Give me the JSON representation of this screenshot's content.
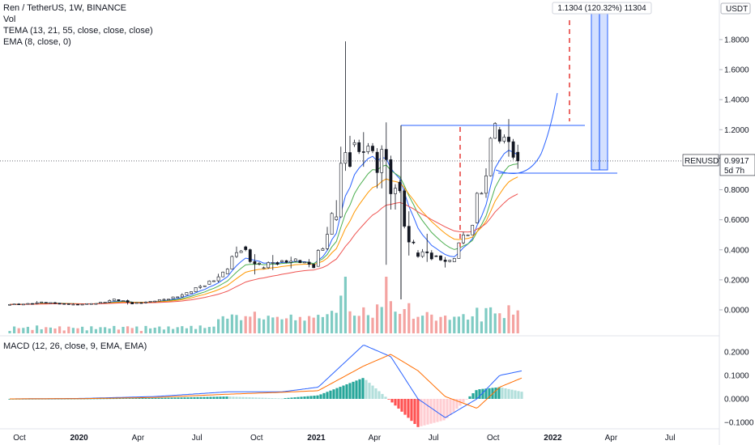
{
  "legend": {
    "title": "Ren / TetherUS, 1W, BINANCE",
    "vol": "Vol",
    "tema": "TEMA (13, 21, 55, close, close, close)",
    "ema": "EMA (8, close, 0)",
    "macd": "MACD (12, 26, close, 9, EMA, EMA)"
  },
  "axis": {
    "currency": "USDT",
    "price_ticks": [
      "1.8000",
      "1.6000",
      "1.4000",
      "1.2000",
      "0.8000",
      "0.6000",
      "0.4000",
      "0.2000",
      "0.0000"
    ],
    "macd_ticks": [
      "0.2000",
      "0.1000",
      "0.0000",
      "−0.1000"
    ],
    "time_ticks": [
      "Oct",
      "2020",
      "Apr",
      "Jul",
      "Oct",
      "2021",
      "Apr",
      "Jul",
      "Oct",
      "2022",
      "Apr",
      "Jul"
    ],
    "time_ticks_bold": [
      false,
      true,
      false,
      false,
      false,
      true,
      false,
      false,
      false,
      true,
      false,
      false
    ]
  },
  "price_label": {
    "symbol": "RENUSDT",
    "price": "0.9917",
    "countdown": "5d 7h"
  },
  "measure": {
    "label": "1.1304 (120.32%) 11304"
  },
  "colors": {
    "up": "#26a69a",
    "down": "#ef5350",
    "vol_up": "#7fcbc3",
    "vol_down": "#f4a3a1",
    "tema_fast": "#2962ff",
    "tema_mid": "#4caf50",
    "tema_slow": "#ff9800",
    "ema": "#ef5350",
    "macd": "#2962ff",
    "signal": "#ff6d00",
    "drawing": "#2962ff",
    "dash": "#e53935"
  },
  "chart_data": [
    {
      "type": "candlestick",
      "title": "Ren / TetherUS, 1W, BINANCE",
      "ylim": [
        -0.15,
        1.9
      ],
      "x_range": [
        "2019-09-01",
        "2022-09-15"
      ],
      "candles": [
        {
          "date": "2019-09-16",
          "open": 0.035,
          "high": 0.045,
          "low": 0.03,
          "close": 0.04
        },
        {
          "date": "2019-10-14",
          "open": 0.04,
          "high": 0.06,
          "low": 0.035,
          "close": 0.05
        },
        {
          "date": "2019-11-11",
          "open": 0.05,
          "high": 0.055,
          "low": 0.038,
          "close": 0.042
        },
        {
          "date": "2019-12-09",
          "open": 0.042,
          "high": 0.048,
          "low": 0.033,
          "close": 0.036
        },
        {
          "date": "2020-01-06",
          "open": 0.036,
          "high": 0.046,
          "low": 0.032,
          "close": 0.044
        },
        {
          "date": "2020-02-03",
          "open": 0.044,
          "high": 0.075,
          "low": 0.04,
          "close": 0.068
        },
        {
          "date": "2020-03-02",
          "open": 0.068,
          "high": 0.075,
          "low": 0.03,
          "close": 0.045
        },
        {
          "date": "2020-03-30",
          "open": 0.045,
          "high": 0.06,
          "low": 0.04,
          "close": 0.055
        },
        {
          "date": "2020-04-27",
          "open": 0.055,
          "high": 0.08,
          "low": 0.05,
          "close": 0.075
        },
        {
          "date": "2020-05-25",
          "open": 0.075,
          "high": 0.12,
          "low": 0.07,
          "close": 0.11
        },
        {
          "date": "2020-06-22",
          "open": 0.11,
          "high": 0.18,
          "low": 0.1,
          "close": 0.17
        },
        {
          "date": "2020-07-20",
          "open": 0.17,
          "high": 0.26,
          "low": 0.16,
          "close": 0.24
        },
        {
          "date": "2020-08-17",
          "open": 0.24,
          "high": 0.46,
          "low": 0.23,
          "close": 0.42
        },
        {
          "date": "2020-09-14",
          "open": 0.42,
          "high": 0.47,
          "low": 0.21,
          "close": 0.28
        },
        {
          "date": "2020-10-12",
          "open": 0.28,
          "high": 0.37,
          "low": 0.23,
          "close": 0.32
        },
        {
          "date": "2020-11-09",
          "open": 0.32,
          "high": 0.36,
          "low": 0.28,
          "close": 0.33
        },
        {
          "date": "2020-12-07",
          "open": 0.33,
          "high": 0.35,
          "low": 0.27,
          "close": 0.29
        },
        {
          "date": "2021-01-04",
          "open": 0.29,
          "high": 0.65,
          "low": 0.28,
          "close": 0.6
        },
        {
          "date": "2021-02-01",
          "open": 0.6,
          "high": 1.84,
          "low": 0.55,
          "close": 1.1
        },
        {
          "date": "2021-03-01",
          "open": 1.1,
          "high": 1.23,
          "low": 0.95,
          "close": 1.05
        },
        {
          "date": "2021-04-05",
          "open": 1.05,
          "high": 1.23,
          "low": 0.15,
          "close": 0.85
        },
        {
          "date": "2021-05-10",
          "open": 0.85,
          "high": 0.95,
          "low": 0.29,
          "close": 0.38
        },
        {
          "date": "2021-06-07",
          "open": 0.38,
          "high": 0.5,
          "low": 0.3,
          "close": 0.36
        },
        {
          "date": "2021-07-05",
          "open": 0.36,
          "high": 0.38,
          "low": 0.28,
          "close": 0.32
        },
        {
          "date": "2021-08-02",
          "open": 0.32,
          "high": 0.6,
          "low": 0.31,
          "close": 0.58
        },
        {
          "date": "2021-09-06",
          "open": 0.58,
          "high": 1.25,
          "low": 0.55,
          "close": 1.2
        },
        {
          "date": "2021-10-11",
          "open": 1.2,
          "high": 1.32,
          "low": 0.95,
          "close": 1.05
        },
        {
          "date": "2021-11-08",
          "open": 1.05,
          "high": 1.1,
          "low": 0.94,
          "close": 0.992
        }
      ]
    },
    {
      "type": "line",
      "title": "MACD (12, 26, close, 9, EMA, EMA)",
      "ylim": [
        -0.12,
        0.24
      ],
      "series": [
        {
          "name": "MACD",
          "x": [
            "2019-09-16",
            "2020-01-06",
            "2020-04-27",
            "2020-08-17",
            "2020-11-09",
            "2021-01-04",
            "2021-03-15",
            "2021-04-26",
            "2021-06-07",
            "2021-07-19",
            "2021-09-06",
            "2021-10-11",
            "2021-11-15"
          ],
          "values": [
            0.0,
            0.002,
            0.01,
            0.03,
            0.03,
            0.05,
            0.23,
            0.18,
            0.0,
            -0.08,
            0.0,
            0.1,
            0.12
          ]
        },
        {
          "name": "Signal",
          "x": [
            "2019-09-16",
            "2020-01-06",
            "2020-04-27",
            "2020-08-17",
            "2020-11-09",
            "2021-01-04",
            "2021-03-15",
            "2021-04-26",
            "2021-06-07",
            "2021-07-19",
            "2021-09-06",
            "2021-10-11",
            "2021-11-15"
          ],
          "values": [
            0.0,
            0.001,
            0.006,
            0.02,
            0.028,
            0.035,
            0.14,
            0.19,
            0.12,
            0.01,
            -0.04,
            0.05,
            0.09
          ]
        }
      ]
    }
  ]
}
